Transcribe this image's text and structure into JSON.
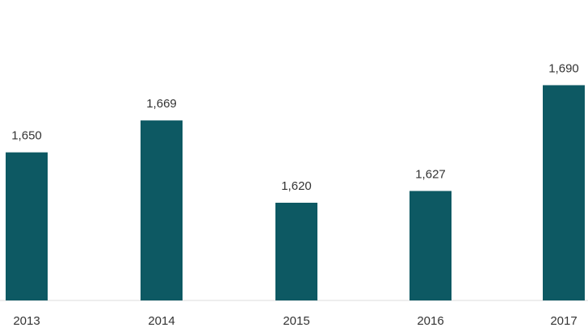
{
  "colors": {
    "bar": "#0d5963",
    "text": "#333333",
    "background": "#ffffff"
  },
  "chart_data": {
    "type": "bar",
    "categories": [
      "2013",
      "2014",
      "2015",
      "2016",
      "2017"
    ],
    "values": [
      1650,
      1669,
      1620,
      1627,
      1690
    ],
    "value_labels": [
      "1,650",
      "1,669",
      "1,620",
      "1,627",
      "1,690"
    ],
    "title": "",
    "xlabel": "",
    "ylabel": "",
    "grid": false,
    "legend": "none"
  }
}
